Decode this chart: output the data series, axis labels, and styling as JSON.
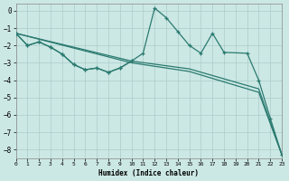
{
  "background_color": "#cce8e4",
  "grid_color": "#aacccc",
  "line_color": "#2a7a70",
  "xlabel": "Humidex (Indice chaleur)",
  "xlim": [
    0,
    23
  ],
  "ylim": [
    -8.5,
    0.4
  ],
  "xticks": [
    0,
    1,
    2,
    3,
    4,
    5,
    6,
    7,
    8,
    9,
    10,
    11,
    12,
    13,
    14,
    15,
    16,
    17,
    18,
    19,
    20,
    21,
    22,
    23
  ],
  "yticks": [
    0,
    -1,
    -2,
    -3,
    -4,
    -5,
    -6,
    -7,
    -8
  ],
  "line_peak_x": [
    0,
    1,
    2,
    3,
    4,
    5,
    6,
    7,
    8,
    9,
    10,
    11,
    12,
    13,
    14,
    15,
    16,
    17,
    18,
    20,
    21,
    22,
    23
  ],
  "line_peak_y": [
    -1.3,
    -2.0,
    -1.8,
    -2.1,
    -2.5,
    -3.1,
    -3.4,
    -3.3,
    -3.55,
    -3.3,
    -2.9,
    -2.45,
    0.15,
    -0.4,
    -1.2,
    -2.0,
    -2.45,
    -1.3,
    -2.4,
    -2.45,
    -4.0,
    -6.2,
    -8.3
  ],
  "line_straight1_x": [
    0,
    10,
    15,
    21,
    23
  ],
  "line_straight1_y": [
    -1.3,
    -3.0,
    -3.5,
    -4.7,
    -8.3
  ],
  "line_straight2_x": [
    0,
    10,
    15,
    21,
    23
  ],
  "line_straight2_y": [
    -1.3,
    -2.9,
    -3.35,
    -4.5,
    -8.3
  ],
  "line_dense_x": [
    0,
    1,
    2,
    3,
    4,
    5,
    6,
    7,
    8,
    9,
    10
  ],
  "line_dense_y": [
    -1.3,
    -2.0,
    -1.8,
    -2.1,
    -2.5,
    -3.1,
    -3.4,
    -3.3,
    -3.55,
    -3.3,
    -2.9
  ]
}
